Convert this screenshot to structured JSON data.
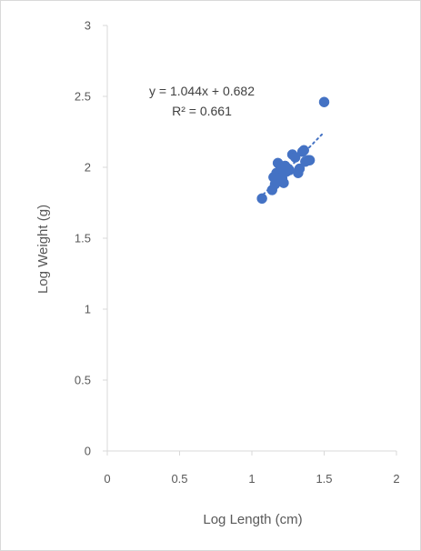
{
  "chart_data": {
    "type": "scatter",
    "title": "",
    "xlabel": "Log Length (cm)",
    "ylabel": "Log Weight (g)",
    "xlim": [
      0,
      2
    ],
    "ylim": [
      0,
      3
    ],
    "x_ticks": [
      0,
      0.5,
      1,
      1.5,
      2
    ],
    "y_ticks": [
      0,
      0.5,
      1,
      1.5,
      2,
      2.5,
      3
    ],
    "x_tick_labels": [
      "0",
      "0.5",
      "1",
      "1.5",
      "2"
    ],
    "y_tick_labels": [
      "0",
      "0.5",
      "1",
      "1.5",
      "2",
      "2.5",
      "3"
    ],
    "grid": false,
    "marker_color": "#4472c4",
    "trendline": {
      "type": "linear",
      "slope": 1.044,
      "intercept": 0.682,
      "x_range": [
        1.08,
        1.49
      ],
      "equation_label": "y = 1.044x + 0.682",
      "r2_label": "R² = 0.661"
    },
    "points": [
      {
        "x": 1.07,
        "y": 1.78
      },
      {
        "x": 1.14,
        "y": 1.84
      },
      {
        "x": 1.15,
        "y": 1.93
      },
      {
        "x": 1.16,
        "y": 1.88
      },
      {
        "x": 1.17,
        "y": 1.96
      },
      {
        "x": 1.18,
        "y": 2.03
      },
      {
        "x": 1.18,
        "y": 1.91
      },
      {
        "x": 1.19,
        "y": 1.97
      },
      {
        "x": 1.2,
        "y": 1.94
      },
      {
        "x": 1.2,
        "y": 1.99
      },
      {
        "x": 1.21,
        "y": 1.92
      },
      {
        "x": 1.22,
        "y": 1.96
      },
      {
        "x": 1.22,
        "y": 1.89
      },
      {
        "x": 1.23,
        "y": 2.01
      },
      {
        "x": 1.24,
        "y": 1.97
      },
      {
        "x": 1.25,
        "y": 1.99
      },
      {
        "x": 1.26,
        "y": 1.98
      },
      {
        "x": 1.28,
        "y": 2.09
      },
      {
        "x": 1.3,
        "y": 2.07
      },
      {
        "x": 1.32,
        "y": 1.96
      },
      {
        "x": 1.33,
        "y": 1.99
      },
      {
        "x": 1.35,
        "y": 2.11
      },
      {
        "x": 1.36,
        "y": 2.12
      },
      {
        "x": 1.37,
        "y": 2.04
      },
      {
        "x": 1.39,
        "y": 2.05
      },
      {
        "x": 1.4,
        "y": 2.05
      },
      {
        "x": 1.5,
        "y": 2.46
      }
    ]
  }
}
